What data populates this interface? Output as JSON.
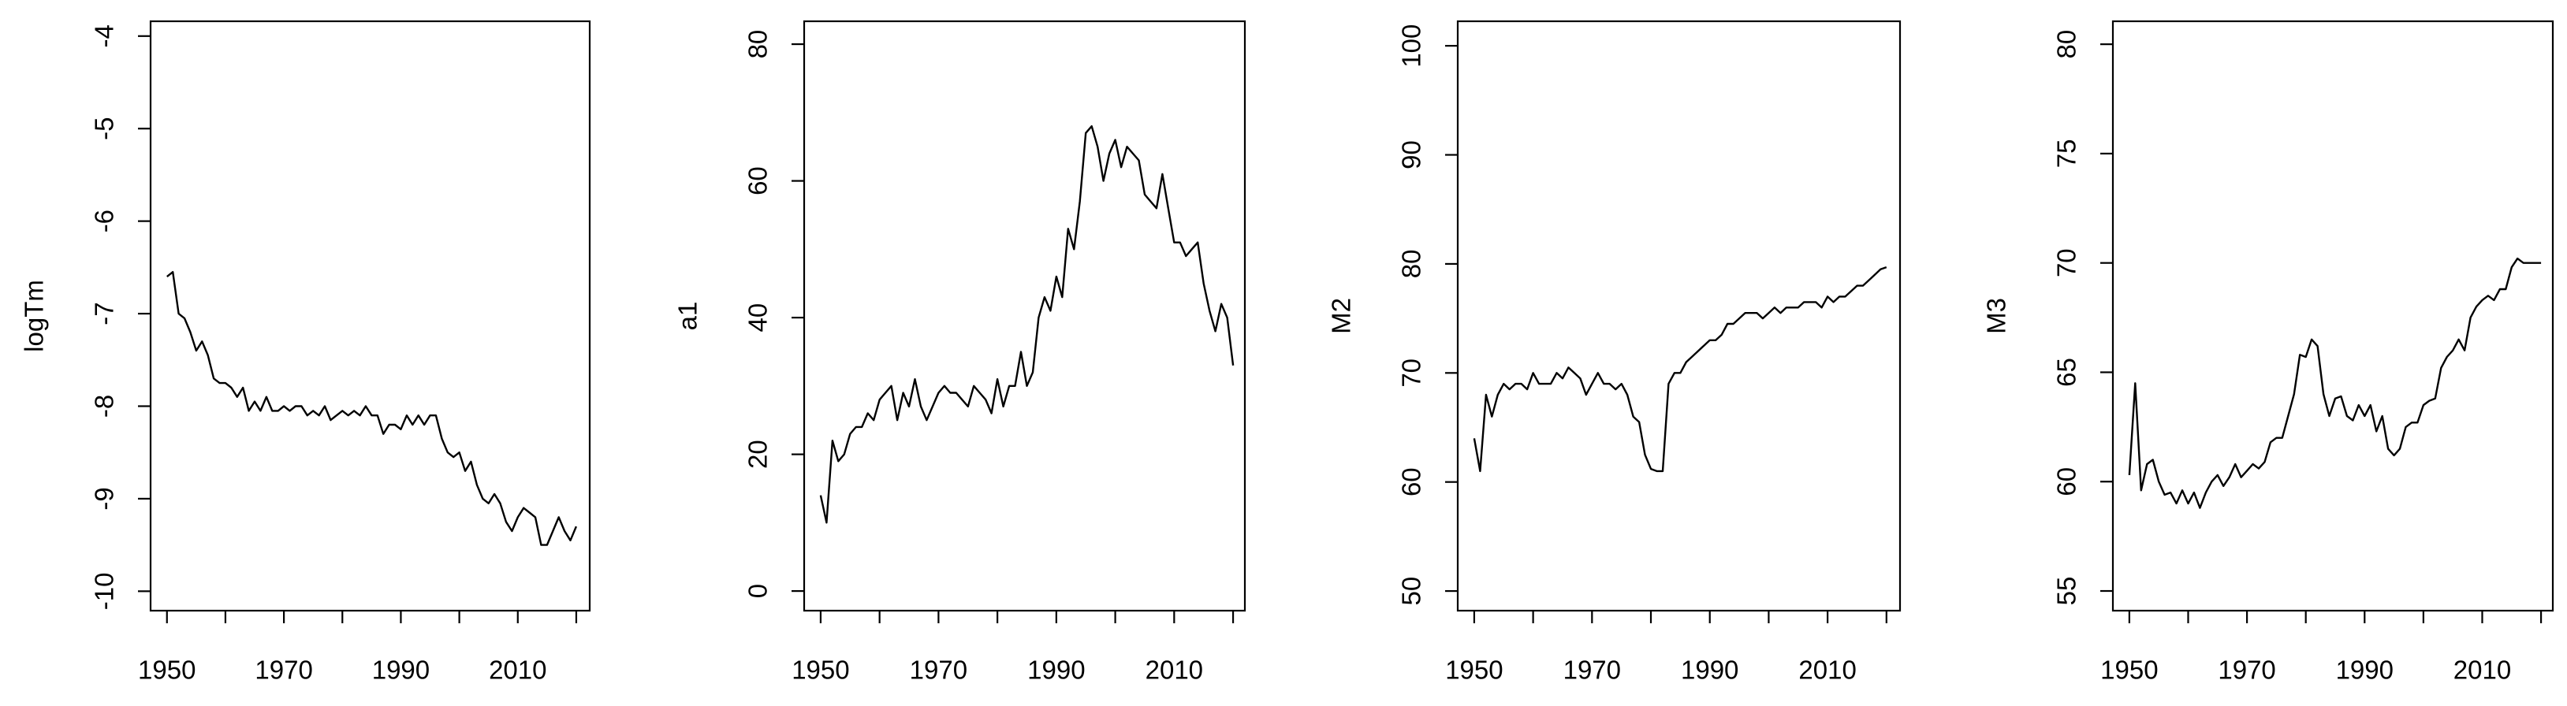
{
  "chart_data": [
    {
      "type": "line",
      "ylabel": "logTm",
      "x": [
        1950,
        1951,
        1952,
        1953,
        1954,
        1955,
        1956,
        1957,
        1958,
        1959,
        1960,
        1961,
        1962,
        1963,
        1964,
        1965,
        1966,
        1967,
        1968,
        1969,
        1970,
        1971,
        1972,
        1973,
        1974,
        1975,
        1976,
        1977,
        1978,
        1979,
        1980,
        1981,
        1982,
        1983,
        1984,
        1985,
        1986,
        1987,
        1988,
        1989,
        1990,
        1991,
        1992,
        1993,
        1994,
        1995,
        1996,
        1997,
        1998,
        1999,
        2000,
        2001,
        2002,
        2003,
        2004,
        2005,
        2006,
        2007,
        2008,
        2009,
        2010,
        2011,
        2012,
        2013,
        2014,
        2015,
        2016,
        2017,
        2018,
        2019,
        2020
      ],
      "series": [
        {
          "color": "#000000",
          "values": [
            -6.6,
            -6.55,
            -7.0,
            -7.05,
            -7.2,
            -7.4,
            -7.3,
            -7.45,
            -7.7,
            -7.75,
            -7.75,
            -7.8,
            -7.9,
            -7.8,
            -8.05,
            -7.95,
            -8.05,
            -7.9,
            -8.05,
            -8.05,
            -8.0,
            -8.05,
            -8.0,
            -8.0,
            -8.1,
            -8.05,
            -8.1,
            -8.0,
            -8.15,
            -8.1,
            -8.05,
            -8.1,
            -8.05,
            -8.1,
            -8.0,
            -8.1,
            -8.1,
            -8.3,
            -8.2,
            -8.2,
            -8.25,
            -8.1,
            -8.2,
            -8.1,
            -8.2,
            -8.1,
            -8.1,
            -8.35,
            -8.5,
            -8.55,
            -8.5,
            -8.7,
            -8.6,
            -8.85,
            -9.0,
            -9.05,
            -8.95,
            -9.05,
            -9.25,
            -9.35,
            -9.2,
            -9.1,
            -9.15,
            -9.2,
            -9.5,
            -9.5,
            -9.35,
            -9.2,
            -9.35,
            -9.45,
            -9.3
          ]
        }
      ],
      "xlim": [
        1947.2,
        2022.3
      ],
      "xticks": [
        1950,
        1970,
        1990,
        2010
      ],
      "xminor_ticks": [
        1960,
        1980,
        2000,
        2020
      ],
      "ylim": [
        -10.21,
        -3.84
      ],
      "yticks": [
        -10,
        -9,
        -8,
        -7,
        -6,
        -5,
        -4
      ]
    },
    {
      "type": "line",
      "ylabel": "a1",
      "x": [
        1950,
        1951,
        1952,
        1953,
        1954,
        1955,
        1956,
        1957,
        1958,
        1959,
        1960,
        1961,
        1962,
        1963,
        1964,
        1965,
        1966,
        1967,
        1968,
        1969,
        1970,
        1971,
        1972,
        1973,
        1974,
        1975,
        1976,
        1977,
        1978,
        1979,
        1980,
        1981,
        1982,
        1983,
        1984,
        1985,
        1986,
        1987,
        1988,
        1989,
        1990,
        1991,
        1992,
        1993,
        1994,
        1995,
        1996,
        1997,
        1998,
        1999,
        2000,
        2001,
        2002,
        2003,
        2004,
        2005,
        2006,
        2007,
        2008,
        2009,
        2010,
        2011,
        2012,
        2013,
        2014,
        2015,
        2016,
        2017,
        2018,
        2019,
        2020
      ],
      "series": [
        {
          "color": "#000000",
          "values": [
            14,
            10,
            22,
            19,
            20,
            23,
            24,
            24,
            26,
            25,
            28,
            29,
            30,
            25,
            29,
            27,
            31,
            27,
            25,
            27,
            29,
            30,
            29,
            29,
            28,
            27,
            30,
            29,
            28,
            26,
            31,
            27,
            30,
            30,
            35,
            30,
            32,
            40,
            43,
            41,
            46,
            43,
            53,
            50,
            57,
            67,
            68,
            65,
            60,
            64,
            66,
            62,
            65,
            64,
            63,
            58,
            57,
            56,
            61,
            56,
            51,
            51,
            49,
            50,
            51,
            45,
            41,
            38,
            42,
            40,
            33
          ]
        }
      ],
      "xlim": [
        1947.2,
        2022.0
      ],
      "xticks": [
        1950,
        1970,
        1990,
        2010
      ],
      "xminor_ticks": [
        1960,
        1980,
        2000,
        2020
      ],
      "ylim": [
        -2.87,
        83.35
      ],
      "yticks": [
        0,
        20,
        40,
        60,
        80
      ]
    },
    {
      "type": "line",
      "ylabel": "M2",
      "x": [
        1950,
        1951,
        1952,
        1953,
        1954,
        1955,
        1956,
        1957,
        1958,
        1959,
        1960,
        1961,
        1962,
        1963,
        1964,
        1965,
        1966,
        1967,
        1968,
        1969,
        1970,
        1971,
        1972,
        1973,
        1974,
        1975,
        1976,
        1977,
        1978,
        1979,
        1980,
        1981,
        1982,
        1983,
        1984,
        1985,
        1986,
        1987,
        1988,
        1989,
        1990,
        1991,
        1992,
        1993,
        1994,
        1995,
        1996,
        1997,
        1998,
        1999,
        2000,
        2001,
        2002,
        2003,
        2004,
        2005,
        2006,
        2007,
        2008,
        2009,
        2010,
        2011,
        2012,
        2013,
        2014,
        2015,
        2016,
        2017,
        2018,
        2019,
        2020
      ],
      "series": [
        {
          "color": "#000000",
          "values": [
            64,
            61,
            68,
            66,
            68,
            69,
            68.5,
            69,
            69,
            68.5,
            70,
            69,
            69,
            69,
            70,
            69.5,
            70.5,
            70,
            69.5,
            68,
            69,
            70,
            69,
            69,
            68.5,
            69,
            68,
            66,
            65.5,
            62.5,
            61.2,
            61,
            61,
            69,
            70,
            70,
            71,
            71.5,
            72,
            72.5,
            73,
            73,
            73.5,
            74.5,
            74.5,
            75,
            75.5,
            75.5,
            75.5,
            75,
            75.5,
            76,
            75.5,
            76,
            76,
            76,
            76.5,
            76.5,
            76.5,
            76,
            77,
            76.5,
            77,
            77,
            77.5,
            78,
            78,
            78.5,
            79,
            79.5,
            79.7
          ]
        }
      ],
      "xlim": [
        1947.2,
        2022.3
      ],
      "xticks": [
        1950,
        1970,
        1990,
        2010
      ],
      "xminor_ticks": [
        1960,
        1980,
        2000,
        2020
      ],
      "ylim": [
        48.2,
        102.25
      ],
      "yticks": [
        50,
        60,
        70,
        80,
        90,
        100
      ]
    },
    {
      "type": "line",
      "ylabel": "M3",
      "x": [
        1950,
        1951,
        1952,
        1953,
        1954,
        1955,
        1956,
        1957,
        1958,
        1959,
        1960,
        1961,
        1962,
        1963,
        1964,
        1965,
        1966,
        1967,
        1968,
        1969,
        1970,
        1971,
        1972,
        1973,
        1974,
        1975,
        1976,
        1977,
        1978,
        1979,
        1980,
        1981,
        1982,
        1983,
        1984,
        1985,
        1986,
        1987,
        1988,
        1989,
        1990,
        1991,
        1992,
        1993,
        1994,
        1995,
        1996,
        1997,
        1998,
        1999,
        2000,
        2001,
        2002,
        2003,
        2004,
        2005,
        2006,
        2007,
        2008,
        2009,
        2010,
        2011,
        2012,
        2013,
        2014,
        2015,
        2016,
        2017,
        2018,
        2019,
        2020
      ],
      "series": [
        {
          "color": "#000000",
          "values": [
            60.3,
            64.5,
            59.6,
            60.8,
            61,
            60,
            59.4,
            59.5,
            59,
            59.6,
            59,
            59.5,
            58.8,
            59.5,
            60,
            60.3,
            59.8,
            60.2,
            60.8,
            60.2,
            60.5,
            60.8,
            60.6,
            60.9,
            61.8,
            62,
            62,
            63,
            64,
            65.8,
            65.7,
            66.5,
            66.2,
            64,
            63,
            63.8,
            63.9,
            63,
            62.8,
            63.5,
            63,
            63.5,
            62.3,
            63,
            61.5,
            61.2,
            61.5,
            62.5,
            62.7,
            62.7,
            63.5,
            63.7,
            63.8,
            65.2,
            65.7,
            66,
            66.5,
            66,
            67.5,
            68,
            68.3,
            68.5,
            68.3,
            68.8,
            68.8,
            69.8,
            70.2,
            70,
            70,
            70,
            70
          ]
        }
      ],
      "xlim": [
        1947.2,
        2022.0
      ],
      "xticks": [
        1950,
        1970,
        1990,
        2010
      ],
      "xminor_ticks": [
        1960,
        1980,
        2000,
        2020
      ],
      "ylim": [
        54.1,
        81.05
      ],
      "yticks": [
        55,
        60,
        65,
        70,
        75,
        80
      ]
    }
  ]
}
